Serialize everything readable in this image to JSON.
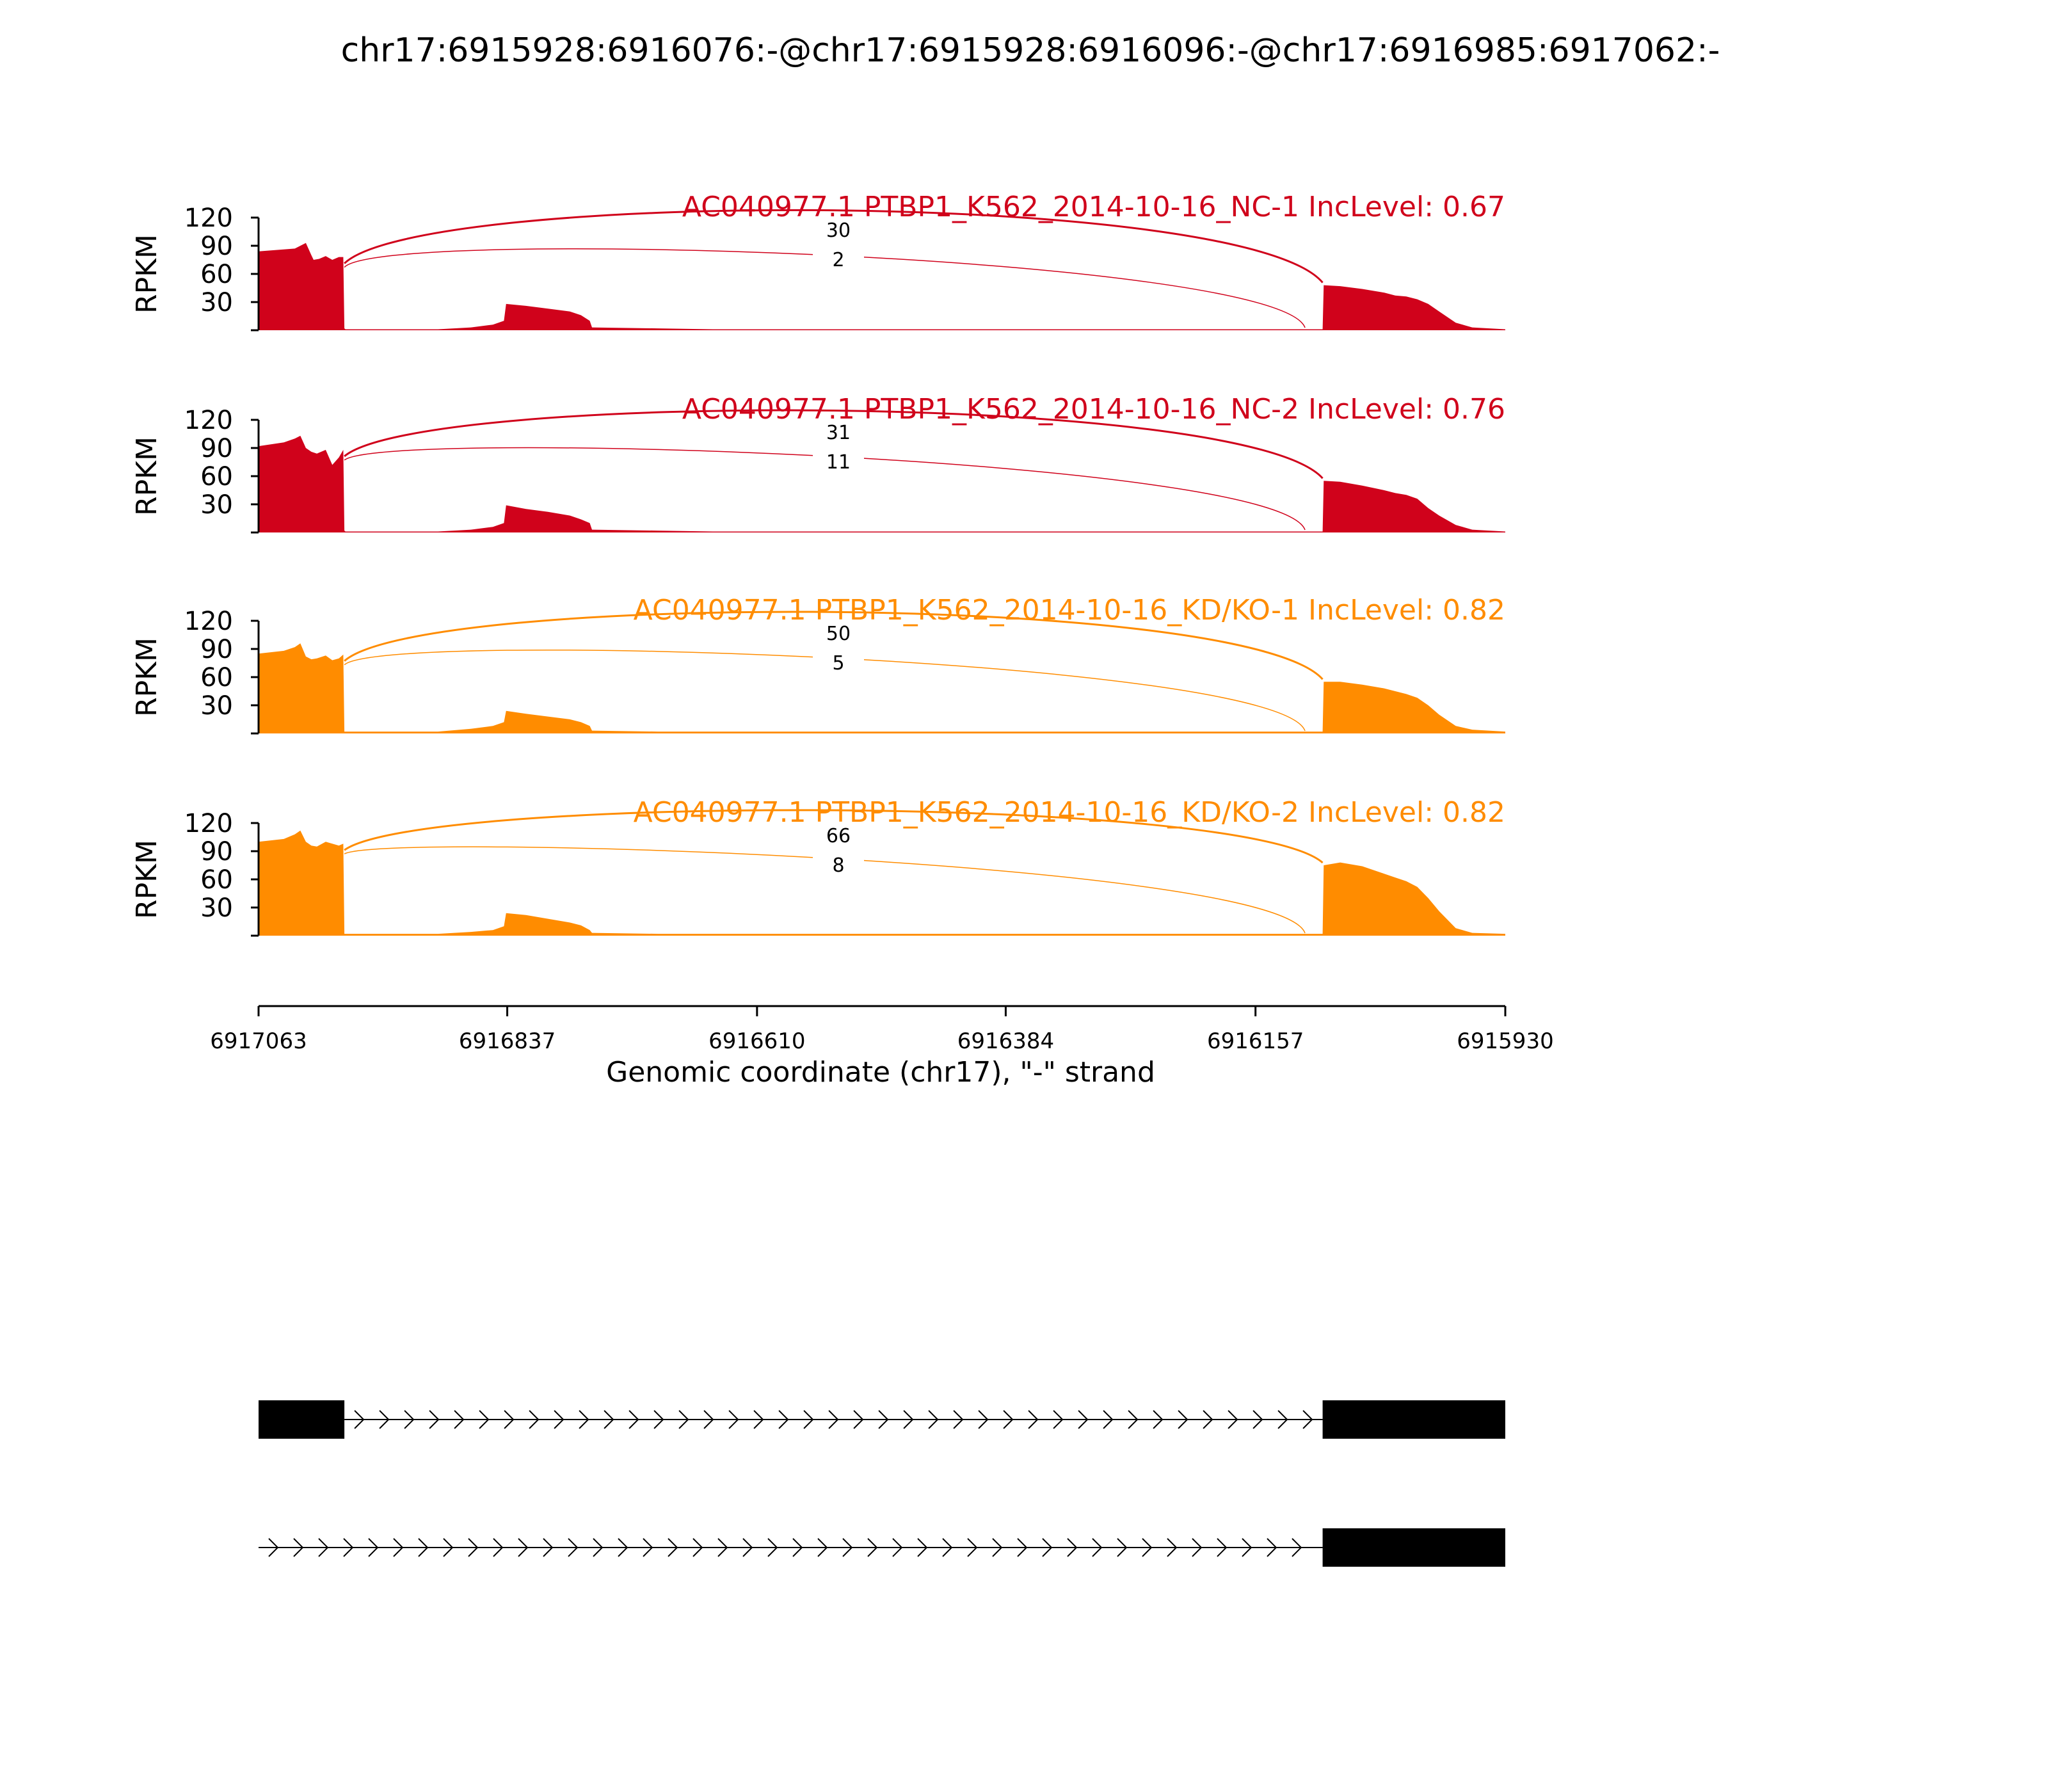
{
  "chart_data": {
    "type": "area",
    "title": "chr17:6915928:6916076:-@chr17:6915928:6916096:-@chr17:6916985:6917062:-",
    "xlabel": "Genomic coordinate (chr17), \"-\" strand",
    "ylabel": "RPKM",
    "x_reversed": true,
    "xlim": [
      6917063,
      6915930
    ],
    "ylim": [
      0,
      120
    ],
    "y_ticks": [
      30,
      60,
      90,
      120
    ],
    "x_ticks": [
      6917063,
      6916837,
      6916610,
      6916384,
      6916157,
      6915930
    ],
    "x_tick_labels": [
      "6917063",
      "6916837",
      "6916610",
      "6916384",
      "6916157",
      "6915930"
    ],
    "grid": false,
    "exon_upstream": [
      6917063,
      6916985
    ],
    "exon_downstream": [
      6916096,
      6915930
    ],
    "junction_short_end": 6916112,
    "series": [
      {
        "name": "AC040977.1 PTBP1_K562_2014-10-16_NC-1 IncLevel: 0.67",
        "color": "#d0021b",
        "x": [
          6917063,
          6917030,
          6917025,
          6917020,
          6917015,
          6917013,
          6917008,
          6917002,
          6916996,
          6916990,
          6916986,
          6916985,
          6916984,
          6916900,
          6916870,
          6916850,
          6916840,
          6916838,
          6916820,
          6916800,
          6916780,
          6916770,
          6916762,
          6916760,
          6916700,
          6916650,
          6916600,
          6916500,
          6916400,
          6916300,
          6916200,
          6916140,
          6916112,
          6916096,
          6916095,
          6916080,
          6916060,
          6916040,
          6916030,
          6916020,
          6916010,
          6916000,
          6915990,
          6915975,
          6915960,
          6915930
        ],
        "values": [
          84,
          87,
          90,
          93,
          80,
          75,
          76,
          79,
          75,
          78,
          78,
          2,
          1,
          1,
          3,
          6,
          10,
          28,
          26,
          23,
          20,
          16,
          10,
          3,
          2,
          1,
          1,
          1,
          1,
          1,
          1,
          1,
          1,
          1,
          48,
          47,
          44,
          40,
          37,
          36,
          33,
          28,
          20,
          8,
          3,
          1
        ],
        "junction_long": 30,
        "junction_short": 2
      },
      {
        "name": "AC040977.1 PTBP1_K562_2014-10-16_NC-2 IncLevel: 0.76",
        "color": "#d0021b",
        "x": [
          6917063,
          6917040,
          6917030,
          6917025,
          6917020,
          6917015,
          6917010,
          6917002,
          6916996,
          6916990,
          6916986,
          6916985,
          6916984,
          6916900,
          6916870,
          6916850,
          6916840,
          6916838,
          6916820,
          6916800,
          6916780,
          6916770,
          6916762,
          6916760,
          6916700,
          6916650,
          6916600,
          6916500,
          6916400,
          6916300,
          6916200,
          6916140,
          6916112,
          6916096,
          6916095,
          6916080,
          6916060,
          6916040,
          6916030,
          6916020,
          6916010,
          6916000,
          6915990,
          6915975,
          6915960,
          6915930
        ],
        "values": [
          92,
          96,
          100,
          103,
          90,
          86,
          84,
          88,
          72,
          80,
          88,
          2,
          1,
          1,
          3,
          6,
          10,
          29,
          25,
          22,
          18,
          14,
          10,
          3,
          2,
          1,
          1,
          1,
          1,
          1,
          1,
          1,
          1,
          1,
          55,
          54,
          50,
          45,
          42,
          40,
          36,
          26,
          18,
          8,
          3,
          1
        ],
        "junction_long": 31,
        "junction_short": 11
      },
      {
        "name": "AC040977.1 PTBP1_K562_2014-10-16_KD/KO-1 IncLevel: 0.82",
        "color": "#ff8c00",
        "x": [
          6917063,
          6917040,
          6917030,
          6917025,
          6917020,
          6917015,
          6917010,
          6917002,
          6916996,
          6916990,
          6916986,
          6916985,
          6916984,
          6916900,
          6916870,
          6916850,
          6916840,
          6916838,
          6916820,
          6916800,
          6916780,
          6916770,
          6916762,
          6916760,
          6916700,
          6916650,
          6916600,
          6916500,
          6916400,
          6916300,
          6916200,
          6916140,
          6916112,
          6916096,
          6916095,
          6916080,
          6916060,
          6916040,
          6916030,
          6916020,
          6916010,
          6916000,
          6915990,
          6915975,
          6915960,
          6915930
        ],
        "values": [
          85,
          88,
          92,
          96,
          82,
          79,
          80,
          83,
          78,
          80,
          84,
          2,
          2,
          2,
          5,
          8,
          12,
          24,
          21,
          18,
          15,
          12,
          8,
          3,
          2,
          2,
          2,
          2,
          2,
          2,
          2,
          2,
          2,
          2,
          55,
          55,
          52,
          48,
          45,
          42,
          38,
          30,
          20,
          8,
          4,
          2
        ],
        "junction_long": 50,
        "junction_short": 5
      },
      {
        "name": "AC040977.1 PTBP1_K562_2014-10-16_KD/KO-2 IncLevel: 0.82",
        "color": "#ff8c00",
        "x": [
          6917063,
          6917040,
          6917030,
          6917025,
          6917020,
          6917015,
          6917010,
          6917002,
          6916996,
          6916990,
          6916986,
          6916985,
          6916984,
          6916900,
          6916870,
          6916850,
          6916840,
          6916838,
          6916820,
          6916800,
          6916780,
          6916770,
          6916762,
          6916760,
          6916700,
          6916650,
          6916600,
          6916500,
          6916400,
          6916300,
          6916200,
          6916140,
          6916112,
          6916096,
          6916095,
          6916080,
          6916060,
          6916040,
          6916030,
          6916020,
          6916010,
          6916000,
          6915990,
          6915975,
          6915960,
          6915930
        ],
        "values": [
          100,
          103,
          108,
          112,
          100,
          96,
          95,
          100,
          98,
          96,
          98,
          2,
          2,
          2,
          4,
          6,
          10,
          24,
          22,
          18,
          14,
          11,
          6,
          3,
          2,
          2,
          2,
          2,
          2,
          2,
          2,
          2,
          2,
          2,
          75,
          78,
          74,
          66,
          62,
          58,
          52,
          40,
          26,
          8,
          3,
          2
        ],
        "junction_long": 66,
        "junction_short": 8
      }
    ],
    "transcripts": [
      {
        "exons": [
          [
            6917063,
            6916985
          ],
          [
            6916096,
            6915930
          ]
        ],
        "intron_start": 6916985,
        "intron_end": 6916096
      },
      {
        "exons": [
          [
            6916096,
            6915930
          ]
        ],
        "intron_start": 6917063,
        "intron_end": 6916096
      }
    ]
  }
}
